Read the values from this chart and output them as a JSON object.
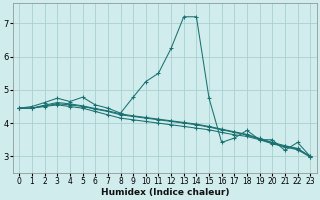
{
  "xlabel": "Humidex (Indice chaleur)",
  "background_color": "#d0ecec",
  "grid_color": "#a8d0d0",
  "line_color": "#1a7070",
  "xlim": [
    -0.5,
    23.5
  ],
  "ylim": [
    2.5,
    7.6
  ],
  "yticks": [
    3,
    4,
    5,
    6,
    7
  ],
  "xticks": [
    0,
    1,
    2,
    3,
    4,
    5,
    6,
    7,
    8,
    9,
    10,
    11,
    12,
    13,
    14,
    15,
    16,
    17,
    18,
    19,
    20,
    21,
    22,
    23
  ],
  "series": [
    [
      4.45,
      4.5,
      4.62,
      4.75,
      4.65,
      4.78,
      4.55,
      4.45,
      4.3,
      4.78,
      5.25,
      5.5,
      6.25,
      7.2,
      7.2,
      4.75,
      3.42,
      3.55,
      3.78,
      3.5,
      3.5,
      3.18,
      3.42,
      3.0
    ],
    [
      4.45,
      4.45,
      4.5,
      4.55,
      4.5,
      4.45,
      4.35,
      4.25,
      4.15,
      4.1,
      4.05,
      4.0,
      3.95,
      3.9,
      3.85,
      3.8,
      3.72,
      3.65,
      3.6,
      3.5,
      3.38,
      3.28,
      3.2,
      2.98
    ],
    [
      4.45,
      4.45,
      4.52,
      4.58,
      4.55,
      4.5,
      4.42,
      4.35,
      4.25,
      4.2,
      4.15,
      4.1,
      4.05,
      4.0,
      3.95,
      3.88,
      3.8,
      3.72,
      3.64,
      3.52,
      3.4,
      3.3,
      3.22,
      2.99
    ],
    [
      4.45,
      4.45,
      4.54,
      4.62,
      4.58,
      4.52,
      4.44,
      4.37,
      4.28,
      4.22,
      4.17,
      4.12,
      4.07,
      4.02,
      3.97,
      3.9,
      3.82,
      3.74,
      3.66,
      3.54,
      3.42,
      3.32,
      3.24,
      3.0
    ]
  ],
  "tick_fontsize": 5.5,
  "xlabel_fontsize": 6.5
}
